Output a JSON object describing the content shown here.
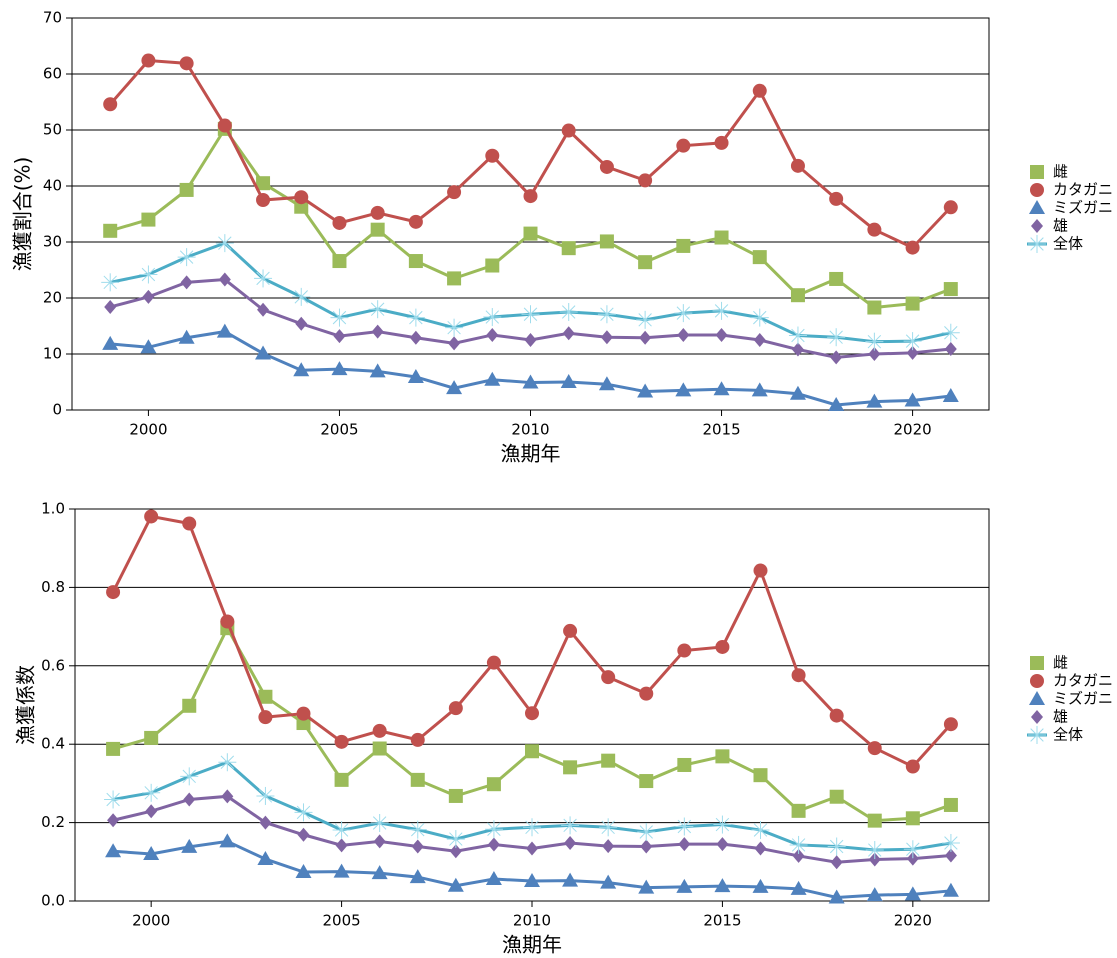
{
  "chart_data": [
    {
      "type": "line",
      "x_label": "漁期年",
      "y_label": "漁獲割合(%)",
      "x": [
        1999,
        2000,
        2001,
        2002,
        2003,
        2004,
        2005,
        2006,
        2007,
        2008,
        2009,
        2010,
        2011,
        2012,
        2013,
        2014,
        2015,
        2016,
        2017,
        2018,
        2019,
        2020,
        2021
      ],
      "xlim": [
        1998,
        2022
      ],
      "xticks": [
        2000,
        2005,
        2010,
        2015,
        2020
      ],
      "ylim": [
        0,
        70
      ],
      "yticks": [
        0,
        10,
        20,
        30,
        40,
        50,
        60,
        70
      ],
      "grid": true,
      "legend": "right",
      "series": [
        {
          "name": "雌",
          "color": "#9bbb59",
          "marker": "square",
          "values": [
            32,
            34,
            39.3,
            50.2,
            40.5,
            36.3,
            26.6,
            32.2,
            26.6,
            23.5,
            25.8,
            31.5,
            28.9,
            30.1,
            26.4,
            29.3,
            30.8,
            27.3,
            20.5,
            23.4,
            18.3,
            19.0,
            21.6
          ]
        },
        {
          "name": "カタガニ",
          "color": "#c0504d",
          "marker": "circle",
          "values": [
            54.6,
            62.4,
            61.9,
            50.8,
            37.5,
            38.0,
            33.4,
            35.2,
            33.6,
            38.9,
            45.4,
            38.2,
            49.9,
            43.4,
            41.0,
            47.2,
            47.7,
            57.0,
            43.6,
            37.7,
            32.2,
            29.0,
            36.2
          ]
        },
        {
          "name": "ミズガニ",
          "color": "#4f81bd",
          "marker": "triangle",
          "values": [
            11.8,
            11.2,
            12.9,
            14.0,
            10.1,
            7.1,
            7.3,
            6.9,
            5.9,
            3.9,
            5.4,
            4.9,
            5.0,
            4.6,
            3.3,
            3.5,
            3.7,
            3.5,
            2.9,
            0.9,
            1.5,
            1.7,
            2.5
          ]
        },
        {
          "name": "雄",
          "color": "#8064a2",
          "marker": "diamond",
          "values": [
            18.4,
            20.2,
            22.8,
            23.3,
            17.9,
            15.4,
            13.2,
            14.0,
            12.9,
            11.9,
            13.4,
            12.5,
            13.7,
            13.0,
            12.9,
            13.4,
            13.4,
            12.5,
            10.8,
            9.4,
            10.0,
            10.2,
            10.9
          ]
        },
        {
          "name": "全体",
          "color": "#4bacc6",
          "marker": "star",
          "values": [
            22.8,
            24.2,
            27.3,
            29.8,
            23.5,
            20.2,
            16.5,
            18.0,
            16.5,
            14.7,
            16.6,
            17.1,
            17.5,
            17.1,
            16.1,
            17.3,
            17.7,
            16.5,
            13.3,
            13.0,
            12.2,
            12.3,
            13.8
          ]
        }
      ]
    },
    {
      "type": "line",
      "x_label": "漁期年",
      "y_label": "漁獲係数",
      "x": [
        1999,
        2000,
        2001,
        2002,
        2003,
        2004,
        2005,
        2006,
        2007,
        2008,
        2009,
        2010,
        2011,
        2012,
        2013,
        2014,
        2015,
        2016,
        2017,
        2018,
        2019,
        2020,
        2021
      ],
      "xlim": [
        1998,
        2022
      ],
      "xticks": [
        2000,
        2005,
        2010,
        2015,
        2020
      ],
      "ylim": [
        0,
        1
      ],
      "yticks": [
        {
          "value": 0,
          "label": "0.0"
        },
        0.2,
        0.4,
        0.6,
        0.8,
        {
          "value": 1,
          "label": "1.0"
        }
      ],
      "grid": true,
      "legend": "right",
      "series": [
        {
          "name": "雌",
          "color": "#9bbb59",
          "marker": "square",
          "values": [
            0.388,
            0.416,
            0.498,
            0.696,
            0.521,
            0.454,
            0.309,
            0.389,
            0.309,
            0.268,
            0.298,
            0.382,
            0.341,
            0.358,
            0.306,
            0.347,
            0.369,
            0.321,
            0.23,
            0.266,
            0.205,
            0.211,
            0.245
          ]
        },
        {
          "name": "カタガニ",
          "color": "#c0504d",
          "marker": "circle",
          "values": [
            0.788,
            0.981,
            0.963,
            0.713,
            0.469,
            0.478,
            0.406,
            0.434,
            0.411,
            0.492,
            0.608,
            0.479,
            0.689,
            0.571,
            0.529,
            0.639,
            0.648,
            0.843,
            0.576,
            0.473,
            0.39,
            0.343,
            0.451
          ]
        },
        {
          "name": "ミズガニ",
          "color": "#4f81bd",
          "marker": "triangle",
          "values": [
            0.127,
            0.12,
            0.138,
            0.152,
            0.107,
            0.074,
            0.075,
            0.071,
            0.061,
            0.039,
            0.056,
            0.051,
            0.052,
            0.047,
            0.034,
            0.036,
            0.038,
            0.036,
            0.031,
            0.009,
            0.015,
            0.017,
            0.026
          ]
        },
        {
          "name": "雄",
          "color": "#8064a2",
          "marker": "diamond",
          "values": [
            0.206,
            0.229,
            0.259,
            0.267,
            0.2,
            0.169,
            0.142,
            0.152,
            0.139,
            0.127,
            0.144,
            0.134,
            0.148,
            0.14,
            0.139,
            0.145,
            0.145,
            0.134,
            0.115,
            0.099,
            0.106,
            0.108,
            0.116
          ]
        },
        {
          "name": "全体",
          "color": "#4bacc6",
          "marker": "star",
          "values": [
            0.259,
            0.276,
            0.318,
            0.354,
            0.268,
            0.226,
            0.181,
            0.199,
            0.182,
            0.158,
            0.183,
            0.188,
            0.193,
            0.188,
            0.176,
            0.19,
            0.195,
            0.181,
            0.143,
            0.139,
            0.13,
            0.132,
            0.148
          ]
        }
      ]
    }
  ]
}
